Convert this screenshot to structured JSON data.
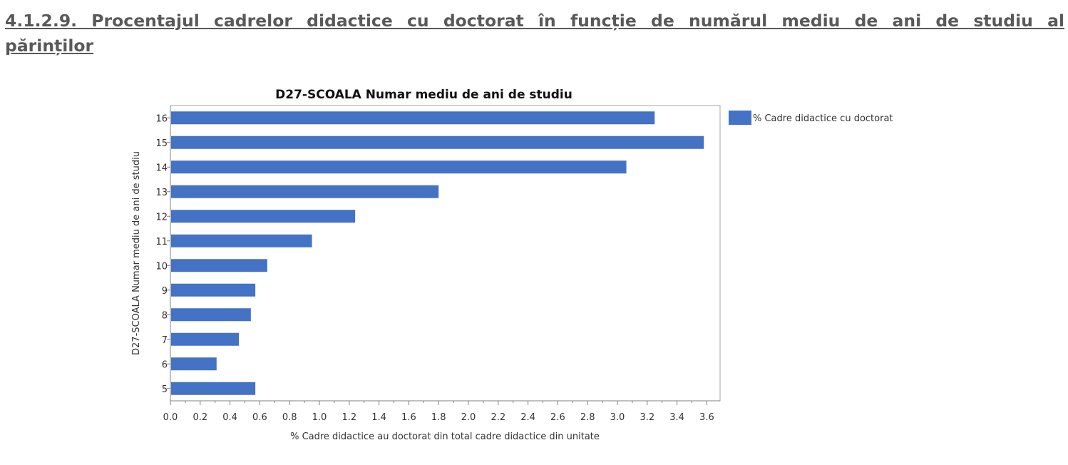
{
  "page": {
    "heading": "4.1.2.9. Procentajul cadrelor didactice cu doctorat în funcție de numărul mediu de ani de studiu al părinților"
  },
  "chart_data": {
    "type": "bar",
    "orientation": "horizontal",
    "title": "D27-SCOALA Numar mediu de ani de studiu",
    "xlabel": "% Cadre didactice au doctorat din total cadre didactice din unitate",
    "ylabel": "D27-SCOALA Numar mediu de ani de studiu",
    "categories": [
      "16",
      "15",
      "14",
      "13",
      "12",
      "11",
      "10",
      "9",
      "8",
      "7",
      "6",
      "5"
    ],
    "series": [
      {
        "name": "% Cadre didactice cu doctorat",
        "values": [
          3.25,
          3.58,
          3.06,
          1.8,
          1.24,
          0.95,
          0.65,
          0.57,
          0.54,
          0.46,
          0.31,
          0.57
        ]
      }
    ],
    "xlim": [
      0,
      3.7
    ],
    "xticks": [
      "0.0",
      "0.2",
      "0.4",
      "0.6",
      "0.8",
      "1.0",
      "1.2",
      "1.4",
      "1.6",
      "1.8",
      "2.0",
      "2.2",
      "2.4",
      "2.6",
      "2.8",
      "3.0",
      "3.2",
      "3.4",
      "3.6"
    ],
    "grid": false,
    "legend_position": "right",
    "bar_color": "#4472C4"
  }
}
